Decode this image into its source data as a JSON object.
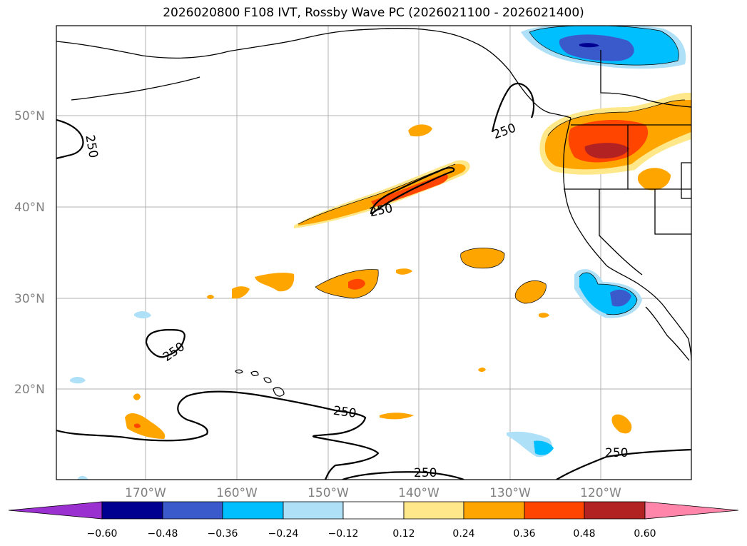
{
  "title": "2026020800 F108 IVT, Rossby Wave PC (2026021100 - 2026021400)",
  "lat_labels": [
    "50°N",
    "40°N",
    "30°N",
    "20°N"
  ],
  "lon_labels": [
    "170°W",
    "160°W",
    "150°W",
    "140°W",
    "130°W",
    "120°W"
  ],
  "contour_value": "250",
  "colorbar": {
    "ticks": [
      "−0.60",
      "−0.48",
      "−0.36",
      "−0.24",
      "−0.12",
      "0.12",
      "0.24",
      "0.36",
      "0.48",
      "0.60"
    ],
    "colors": {
      "lt_m060": "#9b30d0",
      "m060_m048": "#000090",
      "m048_m036": "#3a5acc",
      "m036_m024": "#00bfff",
      "m024_m012": "#aee0f8",
      "m012_012": "#ffffff",
      "012_024": "#ffe88a",
      "024_036": "#ffa500",
      "036_048": "#ff4500",
      "048_060": "#b22222",
      "gt_060": "#ff85aa"
    }
  }
}
